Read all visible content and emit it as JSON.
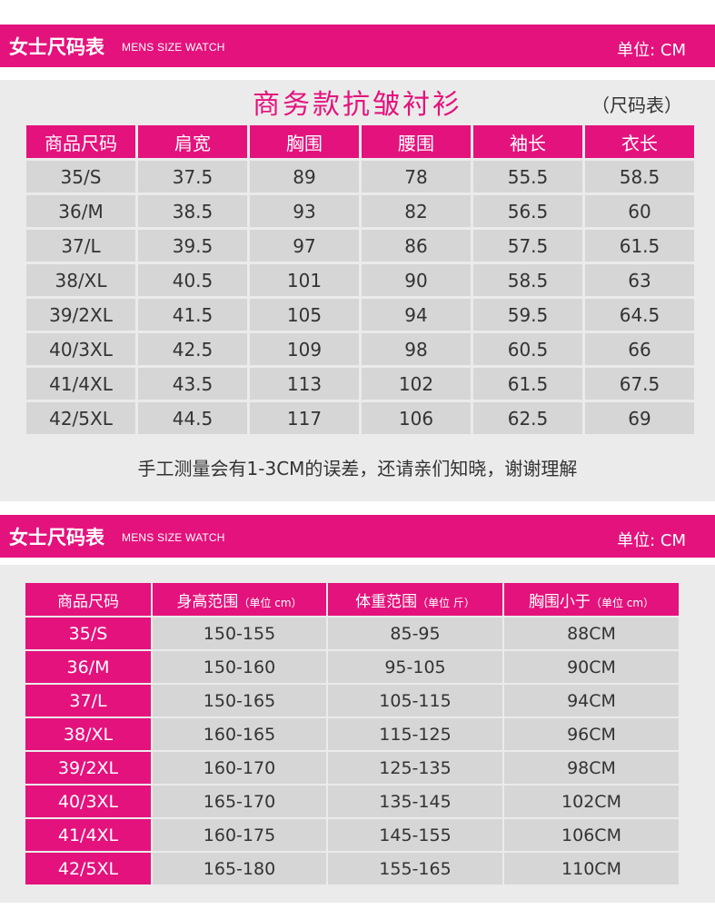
{
  "section1": {
    "band_title": "女士尺码表",
    "band_sub": "MENS SIZE WATCH",
    "unit": "单位: CM",
    "heading": "商务款抗皱衬衫",
    "suffix": "（尺码表）",
    "headers": [
      "商品尺码",
      "肩宽",
      "胸围",
      "腰围",
      "袖长",
      "衣长"
    ],
    "rows": [
      [
        "35/S",
        "37.5",
        "89",
        "78",
        "55.5",
        "58.5"
      ],
      [
        "36/M",
        "38.5",
        "93",
        "82",
        "56.5",
        "60"
      ],
      [
        "37/L",
        "39.5",
        "97",
        "86",
        "57.5",
        "61.5"
      ],
      [
        "38/XL",
        "40.5",
        "101",
        "90",
        "58.5",
        "63"
      ],
      [
        "39/2XL",
        "41.5",
        "105",
        "94",
        "59.5",
        "64.5"
      ],
      [
        "40/3XL",
        "42.5",
        "109",
        "98",
        "60.5",
        "66"
      ],
      [
        "41/4XL",
        "43.5",
        "113",
        "102",
        "61.5",
        "67.5"
      ],
      [
        "42/5XL",
        "44.5",
        "117",
        "106",
        "62.5",
        "69"
      ]
    ],
    "note": "手工测量会有1-3CM的误差，还请亲们知晓，谢谢理解"
  },
  "section2": {
    "band_title": "女士尺码表",
    "band_sub": "MENS SIZE WATCH",
    "unit": "单位: CM",
    "headers": [
      {
        "main": "商品尺码",
        "small": ""
      },
      {
        "main": "身高范围",
        "small": "（单位 cm）"
      },
      {
        "main": "体重范围",
        "small": "（单位 斤）"
      },
      {
        "main": "胸围小于",
        "small": "（单位 cm）"
      }
    ],
    "rows": [
      [
        "35/S",
        "150-155",
        "85-95",
        "88CM"
      ],
      [
        "36/M",
        "150-160",
        "95-105",
        "90CM"
      ],
      [
        "37/L",
        "150-165",
        "105-115",
        "94CM"
      ],
      [
        "38/XL",
        "160-165",
        "115-125",
        "96CM"
      ],
      [
        "39/2XL",
        "160-170",
        "125-135",
        "98CM"
      ],
      [
        "40/3XL",
        "165-170",
        "135-145",
        "102CM"
      ],
      [
        "41/4XL",
        "160-175",
        "145-155",
        "106CM"
      ],
      [
        "42/5XL",
        "165-180",
        "155-165",
        "110CM"
      ]
    ]
  },
  "colors": {
    "accent": "#e4127c",
    "panel": "#ebebeb",
    "cell": "#d6d6d6"
  }
}
